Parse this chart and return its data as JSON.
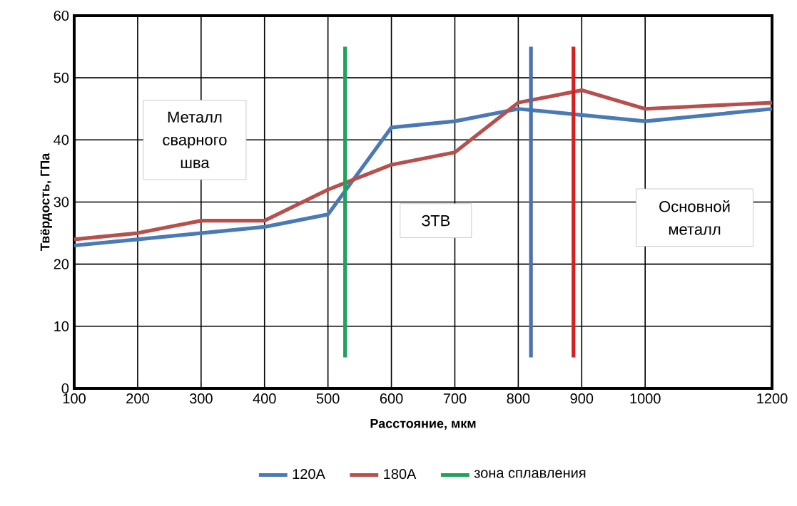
{
  "chart_data": {
    "type": "line",
    "xlabel": "Расстояние, мкм",
    "ylabel": "Твёрдость, ГПа",
    "x": [
      100,
      200,
      300,
      400,
      500,
      600,
      700,
      800,
      900,
      1000,
      1200
    ],
    "series": [
      {
        "name": "120А",
        "color": "#4a7ab5",
        "values": [
          23,
          24,
          25,
          26,
          28,
          42,
          43,
          45,
          44,
          43,
          45
        ]
      },
      {
        "name": "180А",
        "color": "#b5504d",
        "values": [
          24,
          25,
          27,
          27,
          32,
          36,
          38,
          46,
          48,
          45,
          46
        ]
      },
      {
        "name": "зона сплавления",
        "color": "#1fa35c",
        "x": [
          527,
          527
        ],
        "values": [
          5,
          55
        ]
      },
      {
        "color": "#4a72b0",
        "x": [
          820,
          820
        ],
        "values": [
          5,
          55
        ]
      },
      {
        "color": "#d42020",
        "x": [
          887,
          887
        ],
        "values": [
          5,
          55
        ]
      }
    ],
    "xlim": [
      100,
      1200
    ],
    "xticks": [
      100,
      200,
      300,
      400,
      500,
      600,
      700,
      800,
      900,
      1000,
      1200
    ],
    "ylim": [
      0,
      60
    ],
    "yticks": [
      0,
      10,
      20,
      30,
      40,
      50,
      60
    ],
    "grid": true,
    "legend": "bottom",
    "marker": "none",
    "line_style": "solid",
    "annotations": [
      "Металл сварного шва",
      "ЗТВ",
      "Основной металл"
    ]
  }
}
